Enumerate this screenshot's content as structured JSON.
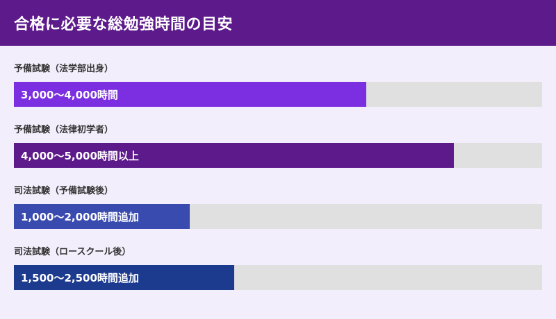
{
  "header": {
    "title": "合格に必要な総勉強時間の目安"
  },
  "chart_data": {
    "type": "bar",
    "orientation": "horizontal",
    "title": "合格に必要な総勉強時間の目安",
    "xlim": [
      0,
      6000
    ],
    "grid": false,
    "categories": [
      "予備試験（法学部出身）",
      "予備試験（法律初学者）",
      "司法試験（予備試験後）",
      "司法試験（ロースクール後）"
    ],
    "values": [
      4000,
      5000,
      2000,
      2500
    ],
    "ranges": [
      [
        3000,
        4000
      ],
      [
        4000,
        5000
      ],
      [
        1000,
        2000
      ],
      [
        1500,
        2500
      ]
    ],
    "data_labels": [
      "3,000〜4,000時間",
      "4,000〜5,000時間以上",
      "1,000〜2,000時間追加",
      "1,500〜2,500時間追加"
    ],
    "colors": [
      "#7b2fe0",
      "#5d1a8b",
      "#3a4bb0",
      "#1c3a8e"
    ],
    "track_color": "#e0e0e0"
  }
}
